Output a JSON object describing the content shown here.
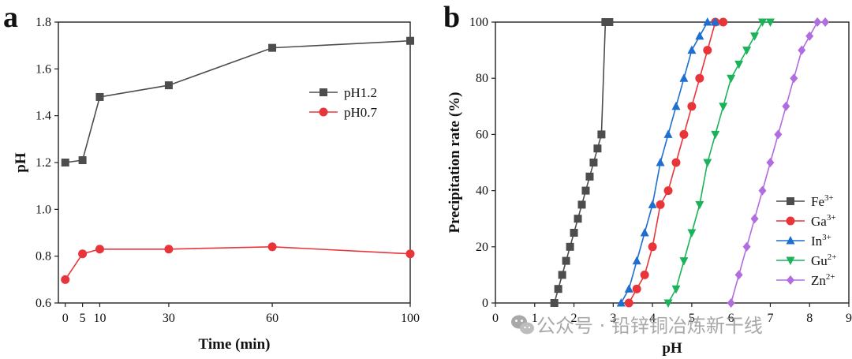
{
  "chart_data": [
    {
      "type": "line",
      "panel_label": "a",
      "title": "",
      "xlabel": "Time (min)",
      "ylabel": "pH",
      "xlim": [
        -2,
        100
      ],
      "ylim": [
        0.6,
        1.8
      ],
      "xticks": [
        0,
        5,
        10,
        30,
        60,
        100
      ],
      "yticks": [
        0.6,
        0.8,
        1.0,
        1.2,
        1.4,
        1.6,
        1.8
      ],
      "ytick_labels": [
        "0.6",
        "0.8",
        "1.0",
        "1.2",
        "1.4",
        "1.6",
        "1.8"
      ],
      "grid": false,
      "legend_position": "center-right",
      "series": [
        {
          "name": "pH1.2",
          "color": "#4d4d4d",
          "marker": "square",
          "x": [
            0,
            5,
            10,
            30,
            60,
            100
          ],
          "y": [
            1.2,
            1.21,
            1.48,
            1.53,
            1.69,
            1.72
          ]
        },
        {
          "name": "pH0.7",
          "color": "#e8353a",
          "marker": "circle",
          "x": [
            0,
            5,
            10,
            30,
            60,
            100
          ],
          "y": [
            0.7,
            0.81,
            0.83,
            0.83,
            0.84,
            0.81
          ]
        }
      ]
    },
    {
      "type": "line",
      "panel_label": "b",
      "title": "",
      "xlabel": "pH",
      "ylabel": "Precipitation rate (%)",
      "xlim": [
        0,
        9
      ],
      "ylim": [
        0,
        100
      ],
      "xticks": [
        0,
        1,
        2,
        3,
        4,
        5,
        6,
        7,
        8,
        9
      ],
      "yticks": [
        0,
        20,
        40,
        60,
        80,
        100
      ],
      "grid": false,
      "legend_position": "lower-right",
      "series": [
        {
          "name": "Fe",
          "charge": "3+",
          "color": "#4d4d4d",
          "marker": "square",
          "x": [
            1.5,
            1.6,
            1.7,
            1.8,
            1.9,
            2.0,
            2.1,
            2.2,
            2.3,
            2.4,
            2.5,
            2.6,
            2.7,
            2.8,
            2.9
          ],
          "y": [
            0,
            5,
            10,
            15,
            20,
            25,
            30,
            35,
            40,
            45,
            50,
            55,
            60,
            100,
            100
          ]
        },
        {
          "name": "Ga",
          "charge": "3+",
          "color": "#e8353a",
          "marker": "circle",
          "x": [
            3.4,
            3.6,
            3.8,
            4.0,
            4.2,
            4.4,
            4.6,
            4.8,
            5.0,
            5.2,
            5.4,
            5.6,
            5.8
          ],
          "y": [
            0,
            5,
            10,
            20,
            35,
            40,
            50,
            60,
            70,
            80,
            90,
            100,
            100
          ]
        },
        {
          "name": "In",
          "charge": "3+",
          "color": "#1f6fd1",
          "marker": "triangle-up",
          "x": [
            3.2,
            3.4,
            3.6,
            3.8,
            4.0,
            4.2,
            4.4,
            4.6,
            4.8,
            5.0,
            5.2,
            5.4,
            5.6
          ],
          "y": [
            0,
            5,
            15,
            25,
            35,
            50,
            60,
            70,
            80,
            90,
            95,
            100,
            100
          ]
        },
        {
          "name": "Gu",
          "charge": "2+",
          "color": "#1bb35a",
          "marker": "triangle-down",
          "x": [
            4.4,
            4.6,
            4.8,
            5.0,
            5.2,
            5.4,
            5.6,
            5.8,
            6.0,
            6.2,
            6.4,
            6.6,
            6.8,
            7.0
          ],
          "y": [
            0,
            5,
            15,
            25,
            35,
            50,
            60,
            70,
            80,
            85,
            90,
            95,
            100,
            100
          ]
        },
        {
          "name": "Zn",
          "charge": "2+",
          "color": "#b16ce0",
          "marker": "diamond",
          "x": [
            6.0,
            6.2,
            6.4,
            6.6,
            6.8,
            7.0,
            7.2,
            7.4,
            7.6,
            7.8,
            8.0,
            8.2,
            8.4
          ],
          "y": [
            0,
            10,
            20,
            30,
            40,
            50,
            60,
            70,
            80,
            90,
            95,
            100,
            100
          ]
        }
      ]
    }
  ],
  "watermark": {
    "icon": "wechat-icon",
    "text": "公众号 · 铅锌铜冶炼新干线"
  }
}
